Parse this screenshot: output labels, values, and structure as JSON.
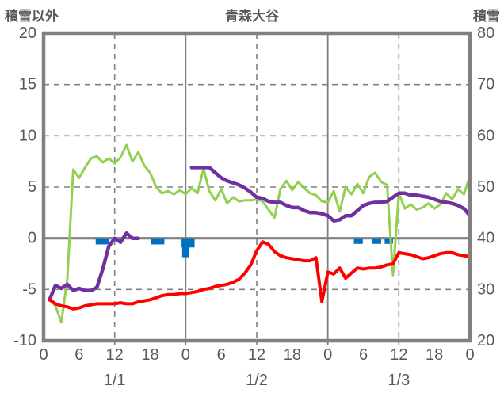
{
  "chart_data": {
    "type": "line",
    "title": "青森大谷",
    "left_axis": {
      "label": "積雪以外",
      "min": -10,
      "max": 20,
      "ticks": [
        20,
        15,
        10,
        5,
        0,
        -5,
        -10
      ]
    },
    "right_axis": {
      "label": "積雪",
      "min": 20,
      "max": 80,
      "ticks": [
        80,
        70,
        60,
        50,
        40,
        30,
        20
      ]
    },
    "x_axis": {
      "start_hour": 1,
      "step_hours": 1,
      "total_hours": 72,
      "tick_interval": 6,
      "hour_labels": [
        "0",
        "6",
        "12",
        "18",
        "0",
        "6",
        "12",
        "18",
        "0",
        "6",
        "12",
        "18",
        "0"
      ],
      "day_labels": [
        "1/1",
        "1/2",
        "1/3"
      ],
      "day_label_hours": [
        12,
        36,
        60
      ]
    },
    "grid": {
      "dashed_h_values": [
        15,
        10,
        5,
        -5
      ],
      "dashed_v_hours": [
        12,
        36,
        60
      ],
      "solid_v_hours": [
        24,
        48
      ],
      "zero_line_value": 0
    },
    "colors": {
      "green": "#92D050",
      "purple": "#7030A0",
      "red": "#FF0000",
      "blue": "#0070C0",
      "grid": "#808080",
      "frame": "#808080",
      "text": "#595959"
    },
    "series": [
      {
        "name": "series-green",
        "axis": "right",
        "color_key": "green",
        "width": 3,
        "values": [
          28,
          26.8,
          23.6,
          32,
          53.4,
          51.8,
          53.8,
          55.6,
          56,
          54.8,
          55.6,
          54.6,
          55.8,
          58.2,
          55,
          56.8,
          54.2,
          52.8,
          50,
          48.8,
          49.2,
          48.6,
          49.4,
          48.6,
          49.8,
          48.8,
          53.6,
          49.2,
          47.4,
          49.6,
          46.8,
          48,
          47.2,
          47.4,
          47.4,
          47.6,
          47.2,
          45.6,
          44,
          49.6,
          51.2,
          49.4,
          51,
          49.8,
          48.8,
          48.4,
          47.2,
          47,
          49.2,
          45.2,
          50,
          48.6,
          50.6,
          48.8,
          52,
          52.8,
          51,
          50.4,
          32.8,
          48.8,
          45.8,
          46.6,
          45.6,
          46,
          46.8,
          45.8,
          46.6,
          48.8,
          47.6,
          49.6,
          48.6,
          52.2
        ]
      },
      {
        "name": "series-purple",
        "axis": "left",
        "color_key": "purple",
        "width": 4.5,
        "values": [
          -6.0,
          -4.6,
          -4.9,
          -4.5,
          -5.1,
          -4.9,
          -5.1,
          -5.1,
          -4.8,
          -3.0,
          -0.8,
          0.0,
          -0.4,
          0.5,
          0.0,
          0.0,
          null,
          null,
          null,
          null,
          null,
          null,
          null,
          null,
          6.9,
          6.9,
          6.9,
          6.9,
          6.4,
          5.9,
          5.6,
          5.4,
          5.2,
          4.9,
          4.5,
          4.0,
          3.9,
          3.6,
          3.5,
          3.5,
          3.2,
          3.0,
          3.0,
          2.7,
          2.5,
          2.5,
          2.4,
          2.2,
          1.7,
          1.8,
          2.2,
          2.2,
          2.7,
          3.2,
          3.4,
          3.5,
          3.5,
          3.6,
          4.0,
          4.4,
          4.4,
          4.2,
          4.2,
          4.1,
          4.0,
          3.8,
          3.6,
          3.5,
          3.4,
          3.2,
          2.9,
          2.2
        ]
      },
      {
        "name": "series-red",
        "axis": "left",
        "color_key": "red",
        "width": 4,
        "values": [
          -6.0,
          -6.4,
          -6.6,
          -6.7,
          -6.9,
          -6.8,
          -6.6,
          -6.5,
          -6.4,
          -6.4,
          -6.4,
          -6.4,
          -6.3,
          -6.4,
          -6.4,
          -6.2,
          -6.1,
          -6.0,
          -5.8,
          -5.6,
          -5.5,
          -5.5,
          -5.4,
          -5.4,
          -5.3,
          -5.2,
          -5.0,
          -4.9,
          -4.7,
          -4.6,
          -4.5,
          -4.3,
          -4.0,
          -3.4,
          -2.6,
          -1.2,
          -0.35,
          -0.6,
          -1.3,
          -1.7,
          -1.9,
          -2.0,
          -2.1,
          -2.2,
          -2.2,
          -1.9,
          -6.2,
          -3.3,
          -3.5,
          -2.9,
          -3.9,
          -3.4,
          -2.9,
          -3.0,
          -2.9,
          -2.9,
          -2.8,
          -2.6,
          -2.5,
          -1.4,
          -1.5,
          -1.6,
          -1.8,
          -2.0,
          -1.9,
          -1.7,
          -1.5,
          -1.4,
          -1.4,
          -1.6,
          -1.7,
          -1.8
        ]
      }
    ],
    "bars": [
      {
        "from": 8.8,
        "to": 11.0,
        "depth": 0.6
      },
      {
        "from": 18.2,
        "to": 20.4,
        "depth": 0.6
      },
      {
        "from": 23.3,
        "to": 25.5,
        "depth": 0.9
      },
      {
        "from": 23.4,
        "to": 24.5,
        "depth": 1.85
      },
      {
        "from": 52.4,
        "to": 53.9,
        "depth": 0.55
      },
      {
        "from": 55.4,
        "to": 57.0,
        "depth": 0.55
      },
      {
        "from": 57.6,
        "to": 59.0,
        "depth": 0.55
      }
    ]
  }
}
